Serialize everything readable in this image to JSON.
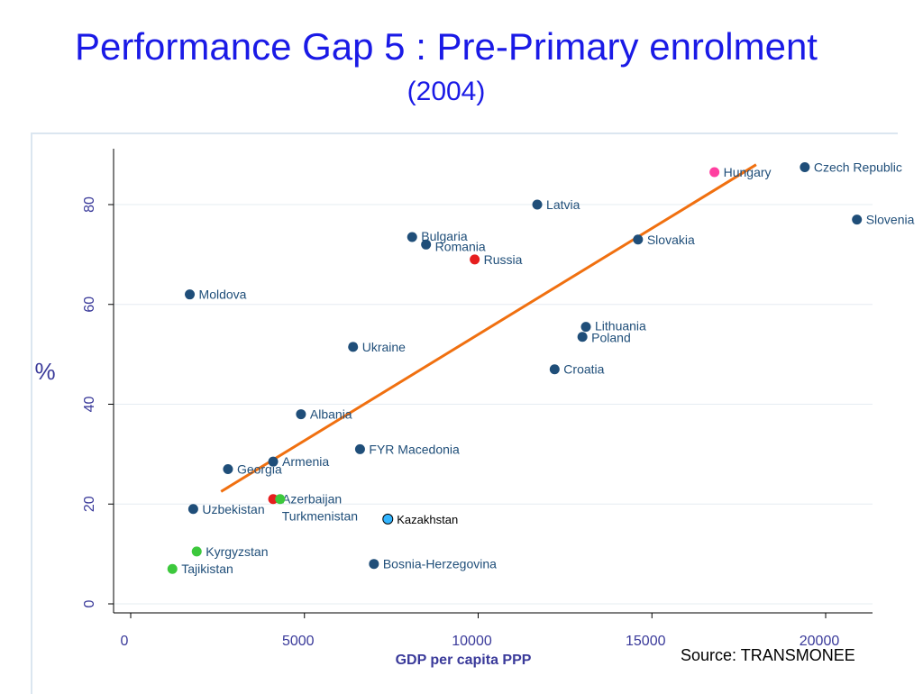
{
  "slide": {
    "title": "Performance Gap 5 : Pre-Primary enrolment",
    "subtitle": "(2004)",
    "source": "Source: TRANSMONEE"
  },
  "colors": {
    "title": "#1a1ae6",
    "default_point": "#1f4e79",
    "label": "#1f4e79",
    "trend": "#f07010",
    "russia": "#e61e1e",
    "hungary": "#ff3fa0",
    "green": "#3cc83c",
    "kazakhstan": "#33b5ff",
    "axis_label": "#3a3a9a",
    "grid": "#e6ecf2"
  },
  "chart_data": {
    "type": "scatter",
    "xlabel": "GDP per capita PPP",
    "ylabel": "%",
    "xlim": [
      0,
      21000
    ],
    "ylim": [
      0,
      90
    ],
    "x_ticks": [
      0,
      5000,
      10000,
      15000,
      20000
    ],
    "x_tick_labels": [
      "0",
      "5000",
      "10000",
      "15000",
      "20000"
    ],
    "y_ticks": [
      0,
      20,
      40,
      60,
      80
    ],
    "y_tick_labels": [
      "0",
      "20",
      "40",
      "60",
      "80"
    ],
    "grid": "horizontal",
    "points": [
      {
        "label": "Czech Republic",
        "x": 19400,
        "y": 87.5,
        "color": "default"
      },
      {
        "label": "Hungary",
        "x": 16800,
        "y": 86.5,
        "color": "hungary"
      },
      {
        "label": "Latvia",
        "x": 11700,
        "y": 80,
        "color": "default"
      },
      {
        "label": "Slovenia",
        "x": 20900,
        "y": 77,
        "color": "default"
      },
      {
        "label": "Bulgaria",
        "x": 8100,
        "y": 73.5,
        "color": "default"
      },
      {
        "label": "Romania",
        "x": 8500,
        "y": 72,
        "color": "default"
      },
      {
        "label": "Slovakia",
        "x": 14600,
        "y": 73,
        "color": "default"
      },
      {
        "label": "Russia",
        "x": 9900,
        "y": 69,
        "color": "russia"
      },
      {
        "label": "Moldova",
        "x": 1700,
        "y": 62,
        "color": "default"
      },
      {
        "label": "Lithuania",
        "x": 13100,
        "y": 55.5,
        "color": "default"
      },
      {
        "label": "Poland",
        "x": 13000,
        "y": 53.5,
        "color": "default"
      },
      {
        "label": "Ukraine",
        "x": 6400,
        "y": 51.5,
        "color": "default"
      },
      {
        "label": "Croatia",
        "x": 12200,
        "y": 47,
        "color": "default"
      },
      {
        "label": "Albania",
        "x": 4900,
        "y": 38,
        "color": "default"
      },
      {
        "label": "FYR Macedonia",
        "x": 6600,
        "y": 31,
        "color": "default"
      },
      {
        "label": "Armenia",
        "x": 4100,
        "y": 28.5,
        "color": "default"
      },
      {
        "label": "Georgia",
        "x": 2800,
        "y": 27,
        "color": "default"
      },
      {
        "label": "Azerbaijan",
        "x": 4100,
        "y": 21,
        "color": "russia"
      },
      {
        "label": "Turkmenistan",
        "x": 4300,
        "y": 21,
        "color": "green"
      },
      {
        "label": "Uzbekistan",
        "x": 1800,
        "y": 19,
        "color": "default"
      },
      {
        "label": "Kazakhstan",
        "x": 7400,
        "y": 17,
        "color": "kazakhstan"
      },
      {
        "label": "Kyrgyzstan",
        "x": 1900,
        "y": 10.5,
        "color": "green"
      },
      {
        "label": "Bosnia-Herzegovina",
        "x": 7000,
        "y": 8,
        "color": "default"
      },
      {
        "label": "Tajikistan",
        "x": 1200,
        "y": 7,
        "color": "green"
      }
    ],
    "trend_line": {
      "x": [
        2600,
        18000
      ],
      "y": [
        22.5,
        88
      ]
    }
  }
}
